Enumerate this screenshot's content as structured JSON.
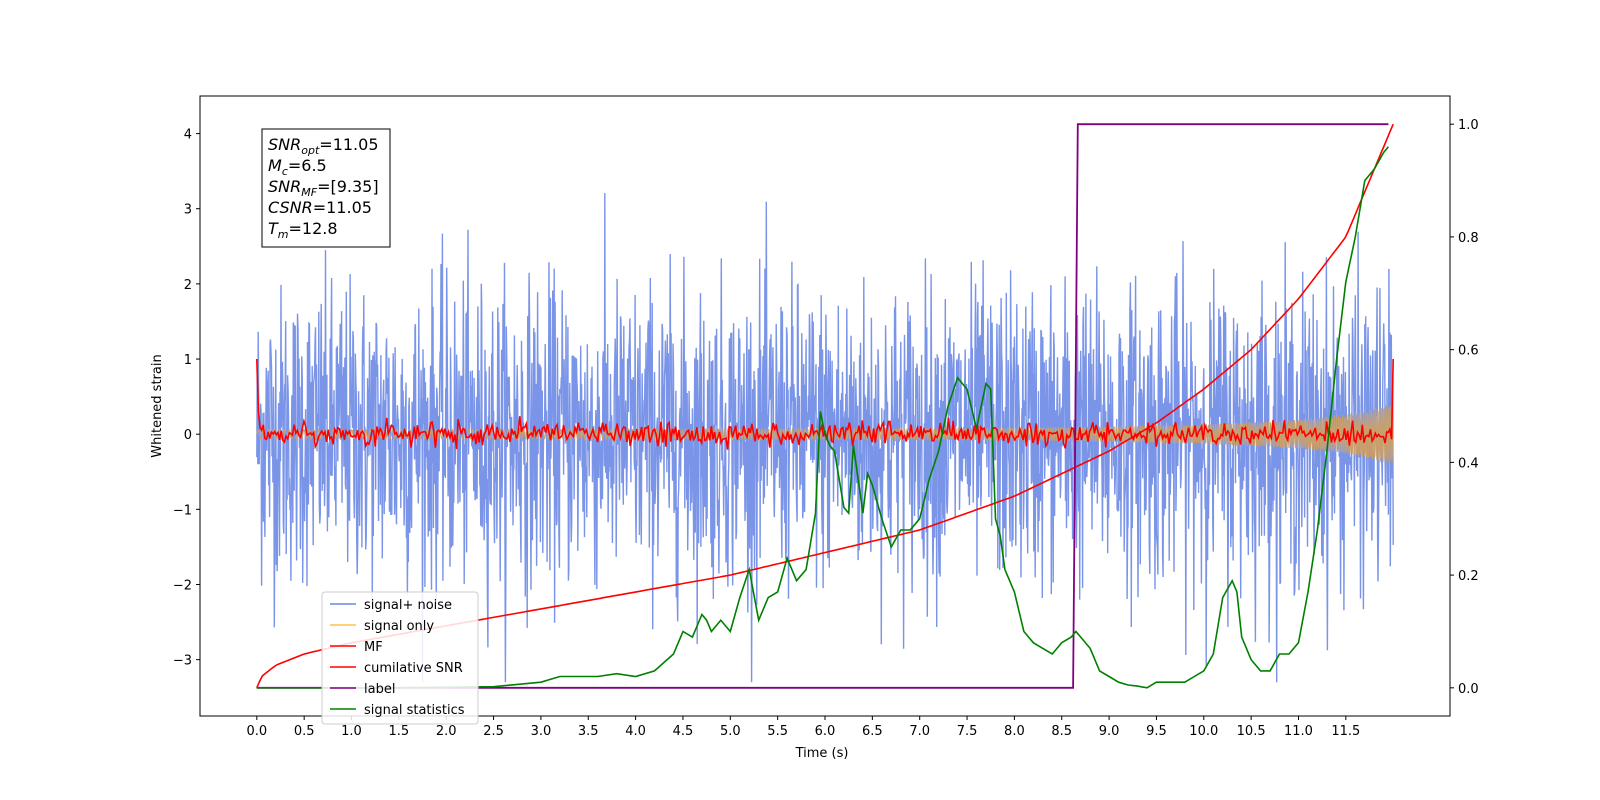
{
  "chart_data": {
    "type": "line",
    "title": "",
    "xlabel": "Time (s)",
    "ylabel": "Whitened strain",
    "xlim": [
      -0.6,
      12.6
    ],
    "ylim": [
      -3.75,
      4.5
    ],
    "y2lim": [
      -0.05,
      1.05
    ],
    "x_ticks": [
      0.0,
      0.5,
      1.0,
      1.5,
      2.0,
      2.5,
      3.0,
      3.5,
      4.0,
      4.5,
      5.0,
      5.5,
      6.0,
      6.5,
      7.0,
      7.5,
      8.0,
      8.5,
      9.0,
      9.5,
      10.0,
      10.5,
      11.0,
      11.5
    ],
    "x_tick_labels": [
      "0.0",
      "0.5",
      "1.0",
      "1.5",
      "2.0",
      "2.5",
      "3.0",
      "3.5",
      "4.0",
      "4.5",
      "5.0",
      "5.5",
      "6.0",
      "6.5",
      "7.0",
      "7.5",
      "8.0",
      "8.5",
      "9.0",
      "9.5",
      "10.0",
      "10.5",
      "11.0",
      "11.5"
    ],
    "y_ticks": [
      -3,
      -2,
      -1,
      0,
      1,
      2,
      3,
      4
    ],
    "y_tick_labels": [
      "−3",
      "−2",
      "−1",
      "0",
      "1",
      "2",
      "3",
      "4"
    ],
    "y2_ticks": [
      0.0,
      0.2,
      0.4,
      0.6,
      0.8,
      1.0
    ],
    "y2_tick_labels": [
      "0.0",
      "0.2",
      "0.4",
      "0.6",
      "0.8",
      "1.0"
    ],
    "grid": false,
    "legend_position": "bottom-left",
    "legend": [
      {
        "label": "signal+ noise",
        "color": "#6b88e6"
      },
      {
        "label": "signal only",
        "color": "#ffc04d"
      },
      {
        "label": "MF",
        "color": "#ff0000"
      },
      {
        "label": "cumilative SNR",
        "color": "#ff0000"
      },
      {
        "label": "label",
        "color": "#800080"
      },
      {
        "label": "signal statistics",
        "color": "#008000"
      }
    ],
    "info_box": {
      "snr_opt_value": "=11.05",
      "mc_value": "=6.5",
      "snr_mf_value": "=[9.35]",
      "csnr_value": "=11.05",
      "tm_value": "=12.8"
    },
    "series": [
      {
        "name": "signal+ noise",
        "axis": "left",
        "color": "#6b88e6",
        "description": "noisy whitened strain, roughly within [-3.2, 4.2]"
      },
      {
        "name": "signal only",
        "axis": "left",
        "color": "#ffc04d",
        "envelope": {
          "x": [
            0.0,
            2.0,
            4.0,
            6.0,
            8.0,
            9.0,
            10.0,
            11.0,
            11.5,
            12.0
          ],
          "amplitude": [
            0.06,
            0.06,
            0.065,
            0.07,
            0.08,
            0.1,
            0.13,
            0.19,
            0.26,
            0.4
          ]
        }
      },
      {
        "name": "MF",
        "axis": "left",
        "color": "#ff0000",
        "description": "matched filter output oscillating around 0 with amplitude about 0.15, spike to 1.0 at both ends"
      },
      {
        "name": "cumilative SNR",
        "axis": "right",
        "color": "#ff0000",
        "x": [
          0.0,
          0.05,
          0.2,
          0.5,
          1.0,
          2.0,
          3.0,
          4.0,
          5.0,
          6.0,
          7.0,
          8.0,
          8.5,
          9.0,
          9.5,
          10.0,
          10.5,
          11.0,
          11.5,
          12.0
        ],
        "y": [
          0.0,
          0.02,
          0.04,
          0.06,
          0.08,
          0.11,
          0.14,
          0.17,
          0.2,
          0.24,
          0.28,
          0.34,
          0.38,
          0.42,
          0.47,
          0.53,
          0.6,
          0.69,
          0.8,
          1.0
        ]
      },
      {
        "name": "label",
        "axis": "right",
        "color": "#800080",
        "x": [
          0.0,
          8.62,
          8.67,
          11.95
        ],
        "y": [
          0.0,
          0.0,
          1.0,
          1.0
        ]
      },
      {
        "name": "signal statistics",
        "axis": "right",
        "color": "#008000",
        "x": [
          0.0,
          1.5,
          2.5,
          3.0,
          3.2,
          3.4,
          3.6,
          3.8,
          4.0,
          4.2,
          4.4,
          4.5,
          4.6,
          4.7,
          4.75,
          4.8,
          4.9,
          5.0,
          5.1,
          5.2,
          5.3,
          5.4,
          5.5,
          5.6,
          5.7,
          5.8,
          5.9,
          5.95,
          6.0,
          6.05,
          6.1,
          6.2,
          6.25,
          6.3,
          6.4,
          6.45,
          6.5,
          6.6,
          6.7,
          6.8,
          6.9,
          7.0,
          7.1,
          7.2,
          7.3,
          7.4,
          7.5,
          7.6,
          7.7,
          7.75,
          7.8,
          7.85,
          7.9,
          8.0,
          8.1,
          8.2,
          8.3,
          8.4,
          8.5,
          8.6,
          8.65,
          8.7,
          8.8,
          8.9,
          9.0,
          9.1,
          9.2,
          9.3,
          9.4,
          9.5,
          9.6,
          9.7,
          9.8,
          9.9,
          10.0,
          10.1,
          10.2,
          10.3,
          10.35,
          10.4,
          10.5,
          10.6,
          10.7,
          10.8,
          10.9,
          11.0,
          11.1,
          11.2,
          11.3,
          11.4,
          11.5,
          11.6,
          11.7,
          11.8,
          11.9,
          11.95
        ],
        "y": [
          0.0,
          0.0,
          0.002,
          0.01,
          0.02,
          0.02,
          0.02,
          0.025,
          0.02,
          0.03,
          0.06,
          0.1,
          0.09,
          0.13,
          0.12,
          0.1,
          0.12,
          0.1,
          0.16,
          0.21,
          0.12,
          0.16,
          0.17,
          0.23,
          0.19,
          0.21,
          0.31,
          0.49,
          0.45,
          0.43,
          0.42,
          0.32,
          0.31,
          0.43,
          0.31,
          0.38,
          0.36,
          0.3,
          0.25,
          0.28,
          0.28,
          0.3,
          0.37,
          0.42,
          0.5,
          0.55,
          0.53,
          0.46,
          0.54,
          0.53,
          0.3,
          0.27,
          0.21,
          0.17,
          0.1,
          0.08,
          0.07,
          0.06,
          0.08,
          0.09,
          0.1,
          0.09,
          0.07,
          0.03,
          0.02,
          0.01,
          0.005,
          0.003,
          0.0,
          0.01,
          0.01,
          0.01,
          0.01,
          0.02,
          0.03,
          0.06,
          0.16,
          0.19,
          0.17,
          0.09,
          0.05,
          0.03,
          0.03,
          0.06,
          0.06,
          0.08,
          0.17,
          0.28,
          0.42,
          0.58,
          0.72,
          0.8,
          0.9,
          0.92,
          0.95,
          0.96
        ]
      }
    ]
  }
}
